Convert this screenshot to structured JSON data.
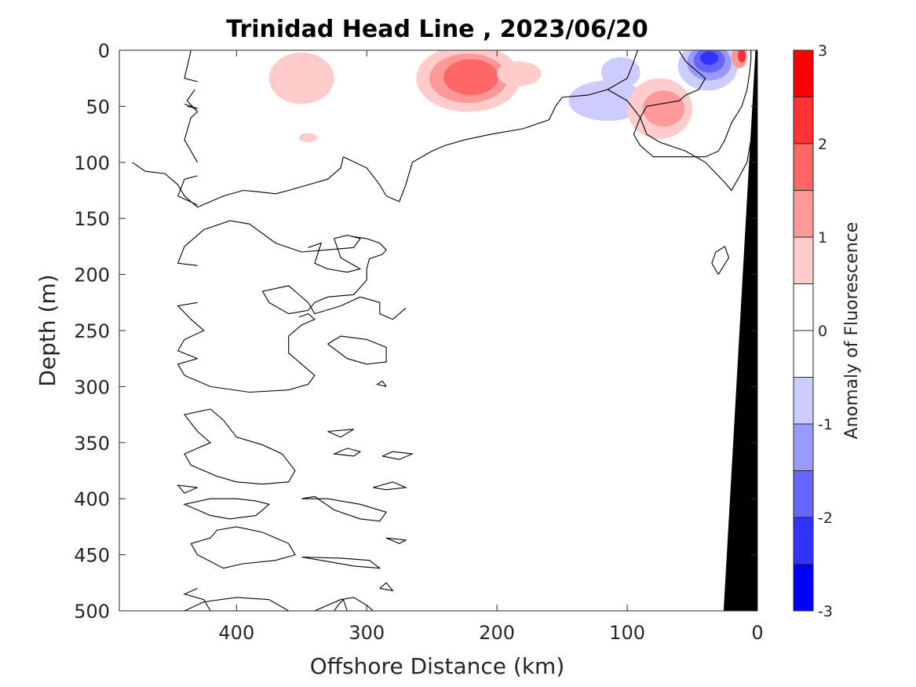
{
  "chart_data": {
    "type": "heatmap",
    "title": "Trinidad Head Line , 2023/06/20",
    "xlabel": "Offshore Distance (km)",
    "ylabel": "Depth (m)",
    "xlim": [
      490,
      0
    ],
    "ylim": [
      0,
      500
    ],
    "y_reversed": true,
    "x_reversed": true,
    "xticks": [
      {
        "value": 400,
        "label": "400"
      },
      {
        "value": 300,
        "label": "300"
      },
      {
        "value": 200,
        "label": "200"
      },
      {
        "value": 100,
        "label": "100"
      },
      {
        "value": 0,
        "label": "0"
      }
    ],
    "yticks": [
      {
        "value": 0,
        "label": "0"
      },
      {
        "value": 50,
        "label": "50"
      },
      {
        "value": 100,
        "label": "100"
      },
      {
        "value": 150,
        "label": "150"
      },
      {
        "value": 200,
        "label": "200"
      },
      {
        "value": 250,
        "label": "250"
      },
      {
        "value": 300,
        "label": "300"
      },
      {
        "value": 350,
        "label": "350"
      },
      {
        "value": 400,
        "label": "400"
      },
      {
        "value": 450,
        "label": "450"
      },
      {
        "value": 500,
        "label": "500"
      }
    ],
    "colorbar": {
      "label": "Anomaly of Fluorescence",
      "range": [
        -3,
        3
      ],
      "levels": [
        -3,
        -2.5,
        -2,
        -1.5,
        -1,
        -0.5,
        0,
        0.5,
        1,
        1.5,
        2,
        2.5,
        3
      ],
      "colors": [
        "#0000ff",
        "#3333ff",
        "#6666ff",
        "#9999ff",
        "#ccccff",
        "#ffffff",
        "#ffffff",
        "#ffcccc",
        "#ff9999",
        "#ff6666",
        "#ff3333",
        "#ff0000"
      ],
      "ticks": [
        {
          "value": 3,
          "label": "3"
        },
        {
          "value": 2,
          "label": "2"
        },
        {
          "value": 1,
          "label": "1"
        },
        {
          "value": 0,
          "label": "0"
        },
        {
          "value": -1,
          "label": "-1"
        },
        {
          "value": -2,
          "label": "-2"
        },
        {
          "value": -3,
          "label": "-3"
        }
      ]
    },
    "anomaly_features": [
      {
        "x": 350,
        "y": 25,
        "rx": 25,
        "ry": 23,
        "value": 0.7
      },
      {
        "x": 345,
        "y": 78,
        "rx": 7,
        "ry": 4,
        "value": 0.7
      },
      {
        "x": 222,
        "y": 25,
        "rx": 40,
        "ry": 30,
        "value": 0.7
      },
      {
        "x": 222,
        "y": 25,
        "rx": 30,
        "ry": 22,
        "value": 1.2
      },
      {
        "x": 220,
        "y": 24,
        "rx": 21,
        "ry": 16,
        "value": 1.7
      },
      {
        "x": 183,
        "y": 21,
        "rx": 17,
        "ry": 11,
        "value": 0.7
      },
      {
        "x": 115,
        "y": 45,
        "rx": 30,
        "ry": 18,
        "value": -0.7
      },
      {
        "x": 105,
        "y": 20,
        "rx": 15,
        "ry": 14,
        "value": -0.7
      },
      {
        "x": 75,
        "y": 52,
        "rx": 25,
        "ry": 27,
        "value": 0.7
      },
      {
        "x": 72,
        "y": 52,
        "rx": 16,
        "ry": 16,
        "value": 1.2
      },
      {
        "x": 38,
        "y": 14,
        "rx": 23,
        "ry": 22,
        "value": -0.7
      },
      {
        "x": 37,
        "y": 11,
        "rx": 17,
        "ry": 16,
        "value": -1.2
      },
      {
        "x": 37,
        "y": 9,
        "rx": 12,
        "ry": 11,
        "value": -1.7
      },
      {
        "x": 37,
        "y": 7,
        "rx": 7,
        "ry": 6,
        "value": -2.2
      },
      {
        "x": 14,
        "y": 6,
        "rx": 6,
        "ry": 10,
        "value": 1.2
      },
      {
        "x": 12,
        "y": 5,
        "rx": 3,
        "ry": 6,
        "value": 2.2
      }
    ],
    "zero_contours": [
      [
        [
          430,
          28
        ],
        [
          440,
          25
        ],
        [
          435,
          0
        ]
      ],
      [
        [
          430,
          100
        ],
        [
          440,
          80
        ],
        [
          435,
          60
        ],
        [
          430,
          55
        ],
        [
          438,
          45
        ],
        [
          432,
          35
        ]
      ],
      [
        [
          440,
          48
        ],
        [
          430,
          52
        ],
        [
          438,
          50
        ]
      ],
      [
        [
          430,
          138
        ],
        [
          445,
          130
        ],
        [
          440,
          115
        ],
        [
          430,
          112
        ]
      ],
      [
        [
          430,
          192
        ],
        [
          445,
          190
        ],
        [
          440,
          175
        ],
        [
          425,
          160
        ],
        [
          405,
          152
        ],
        [
          390,
          155
        ],
        [
          370,
          172
        ],
        [
          350,
          180
        ],
        [
          330,
          178
        ],
        [
          310,
          176
        ],
        [
          305,
          168
        ],
        [
          315,
          165
        ],
        [
          325,
          168
        ],
        [
          320,
          185
        ],
        [
          305,
          195
        ],
        [
          315,
          198
        ],
        [
          330,
          195
        ],
        [
          340,
          190
        ],
        [
          335,
          172
        ],
        [
          345,
          176
        ]
      ],
      [
        [
          312,
          166
        ],
        [
          300,
          168
        ],
        [
          290,
          172
        ],
        [
          285,
          178
        ],
        [
          288,
          182
        ],
        [
          298,
          186
        ],
        [
          300,
          195
        ],
        [
          300,
          205
        ],
        [
          310,
          218
        ],
        [
          330,
          220
        ],
        [
          340,
          225
        ],
        [
          345,
          232
        ],
        [
          360,
          235
        ],
        [
          375,
          225
        ],
        [
          380,
          215
        ],
        [
          360,
          210
        ],
        [
          345,
          225
        ],
        [
          340,
          235
        ],
        [
          320,
          228
        ],
        [
          305,
          220
        ],
        [
          290,
          225
        ],
        [
          290,
          235
        ],
        [
          280,
          240
        ],
        [
          270,
          230
        ]
      ],
      [
        [
          430,
          225
        ],
        [
          445,
          228
        ],
        [
          435,
          240
        ],
        [
          425,
          250
        ],
        [
          440,
          258
        ],
        [
          445,
          268
        ],
        [
          430,
          275
        ]
      ],
      [
        [
          330,
          262
        ],
        [
          320,
          255
        ],
        [
          300,
          258
        ],
        [
          285,
          265
        ],
        [
          285,
          278
        ],
        [
          300,
          280
        ],
        [
          315,
          275
        ],
        [
          330,
          262
        ]
      ],
      [
        [
          430,
          275
        ],
        [
          445,
          280
        ],
        [
          440,
          290
        ],
        [
          420,
          300
        ],
        [
          390,
          305
        ],
        [
          360,
          303
        ],
        [
          345,
          298
        ],
        [
          340,
          290
        ],
        [
          350,
          280
        ],
        [
          360,
          270
        ],
        [
          360,
          255
        ],
        [
          350,
          245
        ],
        [
          340,
          240
        ],
        [
          345,
          235
        ],
        [
          352,
          238
        ]
      ],
      [
        [
          285,
          300
        ],
        [
          292,
          298
        ],
        [
          288,
          295
        ],
        [
          285,
          300
        ]
      ],
      [
        [
          420,
          320
        ],
        [
          440,
          325
        ],
        [
          430,
          340
        ],
        [
          420,
          350
        ],
        [
          440,
          360
        ],
        [
          435,
          370
        ],
        [
          415,
          380
        ],
        [
          400,
          385
        ],
        [
          380,
          387
        ],
        [
          360,
          385
        ],
        [
          355,
          375
        ],
        [
          365,
          360
        ],
        [
          380,
          352
        ],
        [
          400,
          345
        ],
        [
          410,
          330
        ],
        [
          420,
          320
        ]
      ],
      [
        [
          320,
          345
        ],
        [
          330,
          340
        ],
        [
          310,
          338
        ],
        [
          320,
          345
        ]
      ],
      [
        [
          310,
          362
        ],
        [
          325,
          360
        ],
        [
          315,
          355
        ],
        [
          305,
          358
        ],
        [
          310,
          362
        ]
      ],
      [
        [
          288,
          362
        ],
        [
          275,
          365
        ],
        [
          265,
          360
        ],
        [
          280,
          358
        ],
        [
          288,
          362
        ]
      ],
      [
        [
          295,
          390
        ],
        [
          280,
          385
        ],
        [
          270,
          390
        ],
        [
          285,
          392
        ],
        [
          295,
          390
        ]
      ],
      [
        [
          430,
          390
        ],
        [
          445,
          388
        ],
        [
          440,
          395
        ],
        [
          430,
          390
        ]
      ],
      [
        [
          420,
          400
        ],
        [
          440,
          405
        ],
        [
          420,
          415
        ],
        [
          405,
          418
        ],
        [
          385,
          415
        ],
        [
          375,
          405
        ],
        [
          385,
          402
        ],
        [
          400,
          400
        ],
        [
          420,
          400
        ]
      ],
      [
        [
          350,
          400
        ],
        [
          340,
          398
        ],
        [
          325,
          410
        ],
        [
          305,
          418
        ],
        [
          290,
          420
        ],
        [
          285,
          412
        ],
        [
          305,
          405
        ],
        [
          330,
          400
        ],
        [
          350,
          400
        ]
      ],
      [
        [
          430,
          450
        ],
        [
          435,
          440
        ],
        [
          420,
          435
        ],
        [
          415,
          428
        ],
        [
          400,
          425
        ],
        [
          380,
          430
        ],
        [
          360,
          440
        ],
        [
          355,
          450
        ],
        [
          370,
          455
        ],
        [
          395,
          458
        ],
        [
          410,
          462
        ],
        [
          430,
          450
        ]
      ],
      [
        [
          350,
          452
        ],
        [
          335,
          455
        ],
        [
          310,
          460
        ],
        [
          290,
          462
        ],
        [
          298,
          455
        ],
        [
          320,
          453
        ],
        [
          350,
          452
        ]
      ],
      [
        [
          285,
          435
        ],
        [
          275,
          440
        ],
        [
          270,
          437
        ],
        [
          285,
          435
        ]
      ],
      [
        [
          290,
          480
        ],
        [
          285,
          475
        ],
        [
          280,
          482
        ],
        [
          290,
          480
        ]
      ],
      [
        [
          430,
          480
        ],
        [
          440,
          485
        ],
        [
          425,
          490
        ],
        [
          420,
          500
        ]
      ],
      [
        [
          440,
          500
        ],
        [
          425,
          492
        ],
        [
          400,
          488
        ],
        [
          375,
          490
        ],
        [
          360,
          500
        ]
      ],
      [
        [
          340,
          500
        ],
        [
          320,
          490
        ],
        [
          310,
          488
        ],
        [
          300,
          495
        ],
        [
          295,
          500
        ]
      ],
      [
        [
          325,
          500
        ],
        [
          322,
          495
        ],
        [
          318,
          490
        ],
        [
          315,
          500
        ]
      ],
      [
        [
          30,
          200
        ],
        [
          35,
          190
        ],
        [
          32,
          180
        ],
        [
          25,
          175
        ],
        [
          22,
          185
        ],
        [
          30,
          200
        ]
      ],
      [
        [
          318,
          95
        ],
        [
          300,
          105
        ],
        [
          290,
          120
        ],
        [
          285,
          130
        ],
        [
          275,
          135
        ],
        [
          270,
          120
        ],
        [
          265,
          100
        ],
        [
          250,
          90
        ],
        [
          240,
          85
        ],
        [
          225,
          80
        ],
        [
          205,
          75
        ],
        [
          180,
          70
        ],
        [
          160,
          62
        ],
        [
          155,
          50
        ],
        [
          150,
          42
        ],
        [
          130,
          40
        ],
        [
          115,
          35
        ],
        [
          100,
          25
        ],
        [
          95,
          10
        ],
        [
          92,
          0
        ]
      ],
      [
        [
          115,
          35
        ],
        [
          100,
          45
        ],
        [
          90,
          60
        ],
        [
          85,
          75
        ],
        [
          75,
          82
        ],
        [
          55,
          90
        ],
        [
          40,
          100
        ],
        [
          25,
          118
        ],
        [
          20,
          125
        ],
        [
          15,
          115
        ],
        [
          8,
          100
        ],
        [
          5,
          80
        ],
        [
          3,
          60
        ]
      ],
      [
        [
          318,
          95
        ],
        [
          320,
          105
        ],
        [
          325,
          110
        ],
        [
          330,
          115
        ],
        [
          345,
          120
        ],
        [
          360,
          125
        ],
        [
          370,
          128
        ],
        [
          385,
          126
        ],
        [
          395,
          125
        ],
        [
          410,
          130
        ],
        [
          420,
          135
        ],
        [
          430,
          140
        ],
        [
          440,
          130
        ],
        [
          445,
          120
        ],
        [
          455,
          110
        ],
        [
          470,
          108
        ],
        [
          480,
          100
        ]
      ],
      [
        [
          60,
          1
        ],
        [
          55,
          10
        ],
        [
          45,
          20
        ],
        [
          40,
          25
        ],
        [
          45,
          35
        ],
        [
          55,
          40
        ],
        [
          60,
          45
        ],
        [
          75,
          48
        ],
        [
          85,
          50
        ],
        [
          90,
          60
        ],
        [
          95,
          75
        ],
        [
          90,
          85
        ],
        [
          80,
          95
        ],
        [
          60,
          95
        ],
        [
          40,
          95
        ],
        [
          30,
          90
        ],
        [
          25,
          80
        ],
        [
          20,
          65
        ],
        [
          12,
          50
        ],
        [
          8,
          35
        ],
        [
          6,
          20
        ],
        [
          5,
          8
        ],
        [
          5,
          0
        ]
      ]
    ],
    "topography": [
      [
        0,
        0
      ],
      [
        0,
        500
      ],
      [
        26,
        500
      ],
      [
        1.5,
        0
      ]
    ]
  }
}
